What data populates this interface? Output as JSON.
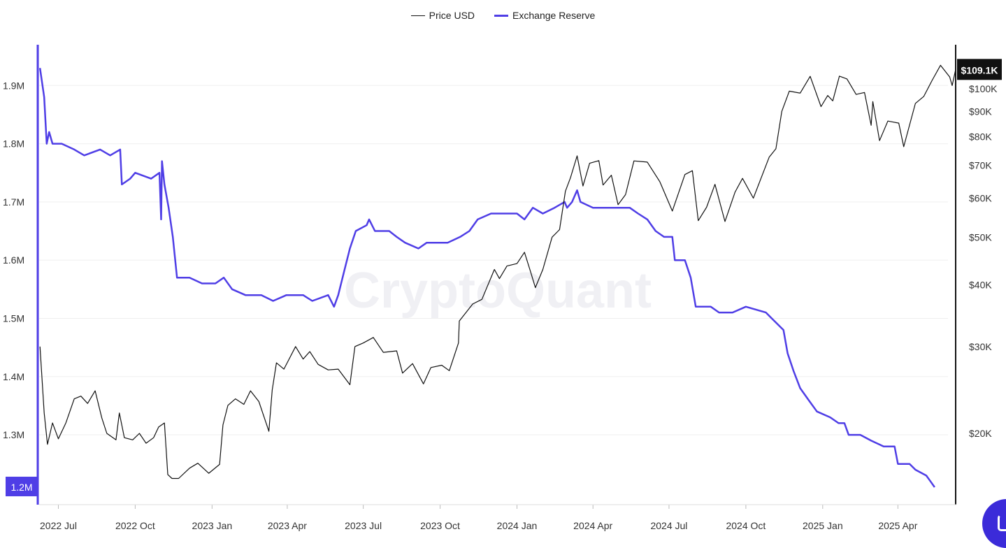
{
  "chart_data": {
    "type": "line",
    "legend": {
      "position": "top-center"
    },
    "watermark": "CryptoQuant",
    "x_ticks": [
      "2022 Jul",
      "2022 Oct",
      "2023 Jan",
      "2023 Apr",
      "2023 Jul",
      "2023 Oct",
      "2024 Jan",
      "2024 Apr",
      "2024 Jul",
      "2024 Oct",
      "2025 Jan",
      "2025 Apr"
    ],
    "x_range": [
      "2022-06-08",
      "2025-06-10"
    ],
    "left_axis": {
      "ticks": [
        "1.9M",
        "1.8M",
        "1.7M",
        "1.6M",
        "1.5M",
        "1.4M",
        "1.3M"
      ],
      "range": [
        1.18,
        1.97
      ],
      "current_label": "1.2M",
      "color": "#4f3ee6"
    },
    "right_axis": {
      "scale": "log",
      "ticks": [
        "$100K",
        "$90K",
        "$80K",
        "$70K",
        "$60K",
        "$50K",
        "$40K",
        "$30K",
        "$20K"
      ],
      "current_label": "$109.1K"
    },
    "grid": true,
    "series": [
      {
        "name": "Price USD",
        "axis": "right",
        "color": "#111111",
        "points": [
          [
            "2022-06-09",
            30000
          ],
          [
            "2022-06-14",
            22000
          ],
          [
            "2022-06-18",
            19000
          ],
          [
            "2022-06-24",
            21000
          ],
          [
            "2022-07-01",
            19500
          ],
          [
            "2022-07-10",
            21000
          ],
          [
            "2022-07-20",
            23500
          ],
          [
            "2022-07-28",
            23800
          ],
          [
            "2022-08-05",
            23000
          ],
          [
            "2022-08-14",
            24400
          ],
          [
            "2022-08-22",
            21500
          ],
          [
            "2022-08-28",
            20000
          ],
          [
            "2022-09-08",
            19400
          ],
          [
            "2022-09-12",
            22000
          ],
          [
            "2022-09-18",
            19600
          ],
          [
            "2022-09-28",
            19400
          ],
          [
            "2022-10-06",
            20000
          ],
          [
            "2022-10-14",
            19100
          ],
          [
            "2022-10-23",
            19600
          ],
          [
            "2022-10-29",
            20600
          ],
          [
            "2022-11-05",
            21000
          ],
          [
            "2022-11-09",
            16500
          ],
          [
            "2022-11-14",
            16200
          ],
          [
            "2022-11-22",
            16200
          ],
          [
            "2022-12-05",
            17000
          ],
          [
            "2022-12-15",
            17400
          ],
          [
            "2022-12-28",
            16600
          ],
          [
            "2023-01-10",
            17300
          ],
          [
            "2023-01-14",
            20800
          ],
          [
            "2023-01-20",
            22800
          ],
          [
            "2023-01-29",
            23500
          ],
          [
            "2023-02-08",
            22900
          ],
          [
            "2023-02-16",
            24400
          ],
          [
            "2023-02-26",
            23200
          ],
          [
            "2023-03-10",
            20200
          ],
          [
            "2023-03-14",
            24500
          ],
          [
            "2023-03-19",
            27800
          ],
          [
            "2023-03-28",
            27000
          ],
          [
            "2023-04-11",
            30000
          ],
          [
            "2023-04-20",
            28300
          ],
          [
            "2023-04-28",
            29300
          ],
          [
            "2023-05-08",
            27600
          ],
          [
            "2023-05-20",
            26900
          ],
          [
            "2023-06-01",
            27000
          ],
          [
            "2023-06-15",
            25100
          ],
          [
            "2023-06-21",
            30000
          ],
          [
            "2023-07-01",
            30500
          ],
          [
            "2023-07-13",
            31300
          ],
          [
            "2023-07-25",
            29200
          ],
          [
            "2023-08-10",
            29400
          ],
          [
            "2023-08-17",
            26500
          ],
          [
            "2023-08-29",
            27700
          ],
          [
            "2023-09-11",
            25200
          ],
          [
            "2023-09-20",
            27200
          ],
          [
            "2023-10-03",
            27500
          ],
          [
            "2023-10-12",
            26800
          ],
          [
            "2023-10-23",
            30500
          ],
          [
            "2023-10-24",
            33800
          ],
          [
            "2023-11-09",
            36600
          ],
          [
            "2023-11-20",
            37400
          ],
          [
            "2023-12-05",
            43000
          ],
          [
            "2023-12-11",
            41200
          ],
          [
            "2023-12-20",
            43700
          ],
          [
            "2024-01-01",
            44200
          ],
          [
            "2024-01-10",
            46600
          ],
          [
            "2024-01-17",
            42700
          ],
          [
            "2024-01-23",
            39500
          ],
          [
            "2024-02-01",
            43000
          ],
          [
            "2024-02-12",
            50000
          ],
          [
            "2024-02-21",
            51800
          ],
          [
            "2024-02-28",
            62000
          ],
          [
            "2024-03-05",
            66000
          ],
          [
            "2024-03-13",
            73100
          ],
          [
            "2024-03-20",
            63500
          ],
          [
            "2024-03-28",
            70600
          ],
          [
            "2024-04-08",
            71500
          ],
          [
            "2024-04-13",
            63800
          ],
          [
            "2024-04-23",
            66800
          ],
          [
            "2024-05-01",
            58200
          ],
          [
            "2024-05-10",
            61000
          ],
          [
            "2024-05-20",
            71400
          ],
          [
            "2024-06-05",
            71000
          ],
          [
            "2024-06-20",
            64800
          ],
          [
            "2024-07-05",
            56500
          ],
          [
            "2024-07-20",
            67000
          ],
          [
            "2024-07-29",
            68200
          ],
          [
            "2024-08-05",
            54000
          ],
          [
            "2024-08-15",
            57500
          ],
          [
            "2024-08-25",
            64000
          ],
          [
            "2024-09-06",
            53800
          ],
          [
            "2024-09-18",
            61700
          ],
          [
            "2024-09-27",
            65800
          ],
          [
            "2024-10-10",
            60000
          ],
          [
            "2024-10-29",
            72700
          ],
          [
            "2024-11-06",
            75600
          ],
          [
            "2024-11-13",
            90000
          ],
          [
            "2024-11-22",
            98900
          ],
          [
            "2024-12-05",
            98000
          ],
          [
            "2024-12-17",
            106000
          ],
          [
            "2024-12-30",
            92000
          ],
          [
            "2025-01-07",
            96900
          ],
          [
            "2025-01-13",
            94500
          ],
          [
            "2025-01-21",
            106100
          ],
          [
            "2025-01-30",
            104700
          ],
          [
            "2025-02-10",
            97400
          ],
          [
            "2025-02-20",
            98300
          ],
          [
            "2025-02-28",
            84300
          ],
          [
            "2025-03-02",
            94200
          ],
          [
            "2025-03-10",
            78500
          ],
          [
            "2025-03-20",
            86000
          ],
          [
            "2025-04-02",
            85200
          ],
          [
            "2025-04-08",
            76300
          ],
          [
            "2025-04-22",
            93400
          ],
          [
            "2025-05-02",
            96500
          ],
          [
            "2025-05-12",
            104000
          ],
          [
            "2025-05-22",
            111600
          ],
          [
            "2025-06-02",
            105700
          ],
          [
            "2025-06-05",
            101500
          ],
          [
            "2025-06-09",
            109100
          ]
        ]
      },
      {
        "name": "Exchange Reserve",
        "axis": "left",
        "color": "#4f3ee6",
        "points": [
          [
            "2022-06-09",
            1.93
          ],
          [
            "2022-06-11",
            1.91
          ],
          [
            "2022-06-14",
            1.88
          ],
          [
            "2022-06-17",
            1.8
          ],
          [
            "2022-06-20",
            1.82
          ],
          [
            "2022-06-24",
            1.8
          ],
          [
            "2022-07-05",
            1.8
          ],
          [
            "2022-07-20",
            1.79
          ],
          [
            "2022-08-01",
            1.78
          ],
          [
            "2022-08-20",
            1.79
          ],
          [
            "2022-09-01",
            1.78
          ],
          [
            "2022-09-13",
            1.79
          ],
          [
            "2022-09-15",
            1.73
          ],
          [
            "2022-09-25",
            1.74
          ],
          [
            "2022-10-01",
            1.75
          ],
          [
            "2022-10-20",
            1.74
          ],
          [
            "2022-10-30",
            1.75
          ],
          [
            "2022-11-01",
            1.67
          ],
          [
            "2022-11-02",
            1.77
          ],
          [
            "2022-11-05",
            1.73
          ],
          [
            "2022-11-10",
            1.69
          ],
          [
            "2022-11-15",
            1.64
          ],
          [
            "2022-11-20",
            1.57
          ],
          [
            "2022-12-05",
            1.57
          ],
          [
            "2022-12-20",
            1.56
          ],
          [
            "2023-01-05",
            1.56
          ],
          [
            "2023-01-15",
            1.57
          ],
          [
            "2023-01-25",
            1.55
          ],
          [
            "2023-02-10",
            1.54
          ],
          [
            "2023-03-01",
            1.54
          ],
          [
            "2023-03-15",
            1.53
          ],
          [
            "2023-03-31",
            1.54
          ],
          [
            "2023-04-20",
            1.54
          ],
          [
            "2023-05-01",
            1.53
          ],
          [
            "2023-05-20",
            1.54
          ],
          [
            "2023-05-27",
            1.52
          ],
          [
            "2023-06-01",
            1.54
          ],
          [
            "2023-06-08",
            1.58
          ],
          [
            "2023-06-15",
            1.62
          ],
          [
            "2023-06-22",
            1.65
          ],
          [
            "2023-07-05",
            1.66
          ],
          [
            "2023-07-08",
            1.67
          ],
          [
            "2023-07-15",
            1.65
          ],
          [
            "2023-08-01",
            1.65
          ],
          [
            "2023-08-10",
            1.64
          ],
          [
            "2023-08-20",
            1.63
          ],
          [
            "2023-09-05",
            1.62
          ],
          [
            "2023-09-15",
            1.63
          ],
          [
            "2023-09-25",
            1.63
          ],
          [
            "2023-10-10",
            1.63
          ],
          [
            "2023-10-25",
            1.64
          ],
          [
            "2023-11-05",
            1.65
          ],
          [
            "2023-11-15",
            1.67
          ],
          [
            "2023-12-01",
            1.68
          ],
          [
            "2023-12-15",
            1.68
          ],
          [
            "2024-01-01",
            1.68
          ],
          [
            "2024-01-10",
            1.67
          ],
          [
            "2024-01-20",
            1.69
          ],
          [
            "2024-02-01",
            1.68
          ],
          [
            "2024-02-15",
            1.69
          ],
          [
            "2024-02-27",
            1.7
          ],
          [
            "2024-03-01",
            1.69
          ],
          [
            "2024-03-07",
            1.7
          ],
          [
            "2024-03-13",
            1.72
          ],
          [
            "2024-03-17",
            1.7
          ],
          [
            "2024-04-01",
            1.69
          ],
          [
            "2024-04-15",
            1.69
          ],
          [
            "2024-05-01",
            1.69
          ],
          [
            "2024-05-15",
            1.69
          ],
          [
            "2024-05-25",
            1.68
          ],
          [
            "2024-06-05",
            1.67
          ],
          [
            "2024-06-15",
            1.65
          ],
          [
            "2024-06-25",
            1.64
          ],
          [
            "2024-07-05",
            1.64
          ],
          [
            "2024-07-08",
            1.6
          ],
          [
            "2024-07-20",
            1.6
          ],
          [
            "2024-07-27",
            1.57
          ],
          [
            "2024-08-02",
            1.52
          ],
          [
            "2024-08-20",
            1.52
          ],
          [
            "2024-08-30",
            1.51
          ],
          [
            "2024-09-15",
            1.51
          ],
          [
            "2024-10-01",
            1.52
          ],
          [
            "2024-10-25",
            1.51
          ],
          [
            "2024-11-01",
            1.5
          ],
          [
            "2024-11-15",
            1.48
          ],
          [
            "2024-11-20",
            1.44
          ],
          [
            "2024-11-27",
            1.41
          ],
          [
            "2024-12-05",
            1.38
          ],
          [
            "2024-12-15",
            1.36
          ],
          [
            "2024-12-25",
            1.34
          ],
          [
            "2025-01-10",
            1.33
          ],
          [
            "2025-01-20",
            1.32
          ],
          [
            "2025-01-27",
            1.32
          ],
          [
            "2025-02-01",
            1.3
          ],
          [
            "2025-02-15",
            1.3
          ],
          [
            "2025-02-28",
            1.29
          ],
          [
            "2025-03-15",
            1.28
          ],
          [
            "2025-03-28",
            1.28
          ],
          [
            "2025-04-01",
            1.25
          ],
          [
            "2025-04-15",
            1.25
          ],
          [
            "2025-04-22",
            1.24
          ],
          [
            "2025-05-05",
            1.23
          ],
          [
            "2025-05-10",
            1.22
          ],
          [
            "2025-05-15",
            1.21
          ]
        ]
      }
    ]
  }
}
